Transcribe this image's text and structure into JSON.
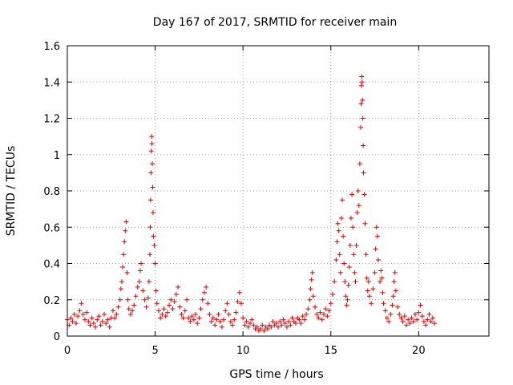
{
  "chart_data": {
    "type": "scatter",
    "title": "Day 167 of 2017, SRMTID for receiver main",
    "xlabel": "GPS time / hours",
    "ylabel": "SRMTID / TECUs",
    "xlim": [
      0,
      24
    ],
    "ylim": [
      0,
      1.6
    ],
    "grid": true,
    "marker": "+",
    "marker_color": "#e00000",
    "x_ticks": [
      0,
      5,
      10,
      15,
      20
    ],
    "x_tick_labels": [
      "0",
      "5",
      "10",
      "15",
      "20"
    ],
    "y_ticks": [
      0,
      0.2,
      0.4,
      0.6,
      0.8,
      1.0,
      1.2,
      1.4,
      1.6
    ],
    "y_tick_labels": [
      "0",
      "0.2",
      "0.4",
      "0.6",
      "0.8",
      "1",
      "1.2",
      "1.4",
      "1.6"
    ],
    "series": [
      {
        "name": "SRMTID",
        "points": [
          [
            0.0,
            0.09
          ],
          [
            0.1,
            0.06
          ],
          [
            0.2,
            0.1
          ],
          [
            0.3,
            0.08
          ],
          [
            0.4,
            0.12
          ],
          [
            0.5,
            0.07
          ],
          [
            0.6,
            0.11
          ],
          [
            0.7,
            0.14
          ],
          [
            0.8,
            0.18
          ],
          [
            0.9,
            0.12
          ],
          [
            1.0,
            0.09
          ],
          [
            1.1,
            0.13
          ],
          [
            1.2,
            0.08
          ],
          [
            1.3,
            0.06
          ],
          [
            1.4,
            0.1
          ],
          [
            1.5,
            0.07
          ],
          [
            1.6,
            0.05
          ],
          [
            1.7,
            0.09
          ],
          [
            1.8,
            0.11
          ],
          [
            1.9,
            0.06
          ],
          [
            2.0,
            0.08
          ],
          [
            2.1,
            0.12
          ],
          [
            2.2,
            0.07
          ],
          [
            2.3,
            0.09
          ],
          [
            2.4,
            0.05
          ],
          [
            2.5,
            0.1
          ],
          [
            2.6,
            0.14
          ],
          [
            2.7,
            0.1
          ],
          [
            2.8,
            0.12
          ],
          [
            2.9,
            0.16
          ],
          [
            3.0,
            0.2
          ],
          [
            3.05,
            0.26
          ],
          [
            3.1,
            0.3
          ],
          [
            3.15,
            0.38
          ],
          [
            3.2,
            0.45
          ],
          [
            3.25,
            0.52
          ],
          [
            3.3,
            0.58
          ],
          [
            3.35,
            0.63
          ],
          [
            3.4,
            0.35
          ],
          [
            3.45,
            0.2
          ],
          [
            3.5,
            0.15
          ],
          [
            3.6,
            0.12
          ],
          [
            3.7,
            0.14
          ],
          [
            3.8,
            0.17
          ],
          [
            3.9,
            0.22
          ],
          [
            4.0,
            0.27
          ],
          [
            4.1,
            0.3
          ],
          [
            4.15,
            0.36
          ],
          [
            4.2,
            0.4
          ],
          [
            4.3,
            0.25
          ],
          [
            4.4,
            0.2
          ],
          [
            4.5,
            0.16
          ],
          [
            4.6,
            0.21
          ],
          [
            4.65,
            0.3
          ],
          [
            4.7,
            0.45
          ],
          [
            4.72,
            0.6
          ],
          [
            4.74,
            0.75
          ],
          [
            4.76,
            0.9
          ],
          [
            4.78,
            1.02
          ],
          [
            4.8,
            1.1
          ],
          [
            4.82,
            1.06
          ],
          [
            4.84,
            0.95
          ],
          [
            4.86,
            0.82
          ],
          [
            4.88,
            0.68
          ],
          [
            4.9,
            0.55
          ],
          [
            4.95,
            0.5
          ],
          [
            5.0,
            0.4
          ],
          [
            5.05,
            0.25
          ],
          [
            5.1,
            0.18
          ],
          [
            5.2,
            0.14
          ],
          [
            5.3,
            0.1
          ],
          [
            5.4,
            0.12
          ],
          [
            5.5,
            0.15
          ],
          [
            5.6,
            0.11
          ],
          [
            5.7,
            0.13
          ],
          [
            5.8,
            0.17
          ],
          [
            5.9,
            0.2
          ],
          [
            6.0,
            0.15
          ],
          [
            6.1,
            0.19
          ],
          [
            6.2,
            0.23
          ],
          [
            6.3,
            0.27
          ],
          [
            6.4,
            0.16
          ],
          [
            6.5,
            0.12
          ],
          [
            6.6,
            0.1
          ],
          [
            6.7,
            0.14
          ],
          [
            6.8,
            0.2
          ],
          [
            6.9,
            0.1
          ],
          [
            7.0,
            0.08
          ],
          [
            7.1,
            0.11
          ],
          [
            7.2,
            0.09
          ],
          [
            7.3,
            0.12
          ],
          [
            7.4,
            0.07
          ],
          [
            7.5,
            0.1
          ],
          [
            7.6,
            0.15
          ],
          [
            7.7,
            0.2
          ],
          [
            7.8,
            0.24
          ],
          [
            7.9,
            0.27
          ],
          [
            8.0,
            0.18
          ],
          [
            8.1,
            0.12
          ],
          [
            8.2,
            0.08
          ],
          [
            8.3,
            0.1
          ],
          [
            8.4,
            0.06
          ],
          [
            8.5,
            0.09
          ],
          [
            8.6,
            0.12
          ],
          [
            8.7,
            0.08
          ],
          [
            8.8,
            0.05
          ],
          [
            8.9,
            0.09
          ],
          [
            9.0,
            0.14
          ],
          [
            9.1,
            0.18
          ],
          [
            9.2,
            0.12
          ],
          [
            9.3,
            0.08
          ],
          [
            9.4,
            0.06
          ],
          [
            9.5,
            0.09
          ],
          [
            9.6,
            0.13
          ],
          [
            9.7,
            0.19
          ],
          [
            9.8,
            0.24
          ],
          [
            9.9,
            0.18
          ],
          [
            10.0,
            0.1
          ],
          [
            10.1,
            0.06
          ],
          [
            10.2,
            0.08
          ],
          [
            10.3,
            0.05
          ],
          [
            10.4,
            0.07
          ],
          [
            10.5,
            0.09
          ],
          [
            10.6,
            0.06
          ],
          [
            10.7,
            0.04
          ],
          [
            10.8,
            0.05
          ],
          [
            10.9,
            0.03
          ],
          [
            11.0,
            0.04
          ],
          [
            11.1,
            0.06
          ],
          [
            11.2,
            0.03
          ],
          [
            11.3,
            0.05
          ],
          [
            11.4,
            0.04
          ],
          [
            11.5,
            0.06
          ],
          [
            11.6,
            0.05
          ],
          [
            11.7,
            0.08
          ],
          [
            11.8,
            0.06
          ],
          [
            11.9,
            0.07
          ],
          [
            12.0,
            0.05
          ],
          [
            12.1,
            0.08
          ],
          [
            12.2,
            0.06
          ],
          [
            12.3,
            0.09
          ],
          [
            12.4,
            0.07
          ],
          [
            12.5,
            0.05
          ],
          [
            12.6,
            0.08
          ],
          [
            12.7,
            0.06
          ],
          [
            12.8,
            0.1
          ],
          [
            12.9,
            0.08
          ],
          [
            13.0,
            0.07
          ],
          [
            13.1,
            0.1
          ],
          [
            13.2,
            0.09
          ],
          [
            13.3,
            0.07
          ],
          [
            13.4,
            0.11
          ],
          [
            13.5,
            0.09
          ],
          [
            13.6,
            0.12
          ],
          [
            13.7,
            0.15
          ],
          [
            13.8,
            0.2
          ],
          [
            13.85,
            0.26
          ],
          [
            13.9,
            0.31
          ],
          [
            13.95,
            0.35
          ],
          [
            14.0,
            0.22
          ],
          [
            14.1,
            0.16
          ],
          [
            14.2,
            0.12
          ],
          [
            14.3,
            0.1
          ],
          [
            14.4,
            0.13
          ],
          [
            14.5,
            0.09
          ],
          [
            14.6,
            0.12
          ],
          [
            14.7,
            0.15
          ],
          [
            14.8,
            0.11
          ],
          [
            14.9,
            0.14
          ],
          [
            15.0,
            0.18
          ],
          [
            15.1,
            0.23
          ],
          [
            15.2,
            0.3
          ],
          [
            15.3,
            0.42
          ],
          [
            15.35,
            0.52
          ],
          [
            15.4,
            0.62
          ],
          [
            15.45,
            0.58
          ],
          [
            15.5,
            0.45
          ],
          [
            15.55,
            0.35
          ],
          [
            15.6,
            0.65
          ],
          [
            15.65,
            0.75
          ],
          [
            15.7,
            0.55
          ],
          [
            15.75,
            0.4
          ],
          [
            15.8,
            0.3
          ],
          [
            15.85,
            0.22
          ],
          [
            15.9,
            0.17
          ],
          [
            15.95,
            0.2
          ],
          [
            16.0,
            0.28
          ],
          [
            16.05,
            0.38
          ],
          [
            16.1,
            0.5
          ],
          [
            16.15,
            0.65
          ],
          [
            16.2,
            0.78
          ],
          [
            16.25,
            0.6
          ],
          [
            16.3,
            0.45
          ],
          [
            16.35,
            0.35
          ],
          [
            16.4,
            0.3
          ],
          [
            16.45,
            0.5
          ],
          [
            16.5,
            0.68
          ],
          [
            16.55,
            0.8
          ],
          [
            16.6,
            0.72
          ],
          [
            16.65,
            0.95
          ],
          [
            16.7,
            1.15
          ],
          [
            16.72,
            1.28
          ],
          [
            16.74,
            1.38
          ],
          [
            16.76,
            1.43
          ],
          [
            16.78,
            1.4
          ],
          [
            16.8,
            1.3
          ],
          [
            16.82,
            1.2
          ],
          [
            16.84,
            1.05
          ],
          [
            16.86,
            0.9
          ],
          [
            16.9,
            0.78
          ],
          [
            16.95,
            0.62
          ],
          [
            17.0,
            0.45
          ],
          [
            17.05,
            0.32
          ],
          [
            17.1,
            0.25
          ],
          [
            17.15,
            0.3
          ],
          [
            17.2,
            0.22
          ],
          [
            17.3,
            0.18
          ],
          [
            17.4,
            0.26
          ],
          [
            17.5,
            0.35
          ],
          [
            17.55,
            0.48
          ],
          [
            17.6,
            0.6
          ],
          [
            17.65,
            0.55
          ],
          [
            17.7,
            0.42
          ],
          [
            17.8,
            0.3
          ],
          [
            17.85,
            0.36
          ],
          [
            17.9,
            0.32
          ],
          [
            17.95,
            0.24
          ],
          [
            18.0,
            0.18
          ],
          [
            18.1,
            0.14
          ],
          [
            18.2,
            0.1
          ],
          [
            18.3,
            0.08
          ],
          [
            18.4,
            0.12
          ],
          [
            18.5,
            0.17
          ],
          [
            18.55,
            0.22
          ],
          [
            18.6,
            0.3
          ],
          [
            18.65,
            0.35
          ],
          [
            18.7,
            0.25
          ],
          [
            18.8,
            0.16
          ],
          [
            18.9,
            0.12
          ],
          [
            19.0,
            0.1
          ],
          [
            19.1,
            0.08
          ],
          [
            19.2,
            0.11
          ],
          [
            19.3,
            0.06
          ],
          [
            19.4,
            0.09
          ],
          [
            19.5,
            0.07
          ],
          [
            19.6,
            0.1
          ],
          [
            19.7,
            0.08
          ],
          [
            19.8,
            0.12
          ],
          [
            19.9,
            0.09
          ],
          [
            20.0,
            0.13
          ],
          [
            20.1,
            0.17
          ],
          [
            20.2,
            0.11
          ],
          [
            20.3,
            0.08
          ],
          [
            20.4,
            0.06
          ],
          [
            20.5,
            0.09
          ],
          [
            20.6,
            0.12
          ],
          [
            20.7,
            0.08
          ],
          [
            20.8,
            0.1
          ],
          [
            20.9,
            0.07
          ]
        ]
      }
    ]
  }
}
